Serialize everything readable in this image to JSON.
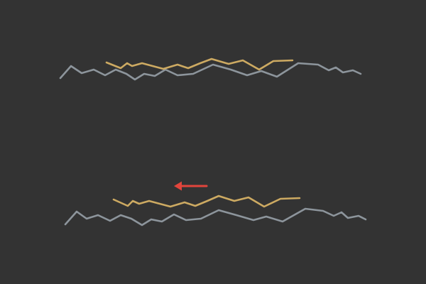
{
  "colors": {
    "background": "#333333",
    "reference": "#8d959c",
    "shifted": "#cdaa62",
    "arrow": "#e2453c"
  },
  "panels": [
    {
      "name": "top",
      "reference": [
        [
          85,
          110
        ],
        [
          100,
          93
        ],
        [
          115,
          103
        ],
        [
          132,
          98
        ],
        [
          148,
          106
        ],
        [
          163,
          98
        ],
        [
          178,
          104
        ],
        [
          190,
          112
        ],
        [
          203,
          104
        ],
        [
          218,
          107
        ],
        [
          233,
          98
        ],
        [
          250,
          106
        ],
        [
          272,
          104
        ],
        [
          300,
          91
        ],
        [
          325,
          98
        ],
        [
          348,
          106
        ],
        [
          368,
          100
        ],
        [
          390,
          108
        ],
        [
          420,
          89
        ],
        [
          448,
          91
        ],
        [
          463,
          99
        ],
        [
          473,
          95
        ],
        [
          483,
          102
        ],
        [
          497,
          99
        ],
        [
          508,
          104
        ]
      ],
      "shifted": [
        [
          150,
          88
        ],
        [
          170,
          96
        ],
        [
          179,
          89
        ],
        [
          186,
          93
        ],
        [
          200,
          89
        ],
        [
          215,
          93
        ],
        [
          230,
          97
        ],
        [
          250,
          91
        ],
        [
          265,
          96
        ],
        [
          282,
          89
        ],
        [
          298,
          83
        ],
        [
          322,
          90
        ],
        [
          342,
          85
        ],
        [
          365,
          98
        ],
        [
          385,
          86
        ],
        [
          412,
          85
        ]
      ]
    },
    {
      "name": "bottom",
      "reference": [
        [
          92,
          316
        ],
        [
          108,
          298
        ],
        [
          122,
          308
        ],
        [
          138,
          303
        ],
        [
          155,
          311
        ],
        [
          170,
          303
        ],
        [
          185,
          308
        ],
        [
          200,
          317
        ],
        [
          213,
          309
        ],
        [
          228,
          312
        ],
        [
          245,
          302
        ],
        [
          262,
          310
        ],
        [
          283,
          308
        ],
        [
          308,
          296
        ],
        [
          333,
          303
        ],
        [
          357,
          310
        ],
        [
          375,
          305
        ],
        [
          398,
          312
        ],
        [
          430,
          294
        ],
        [
          455,
          297
        ],
        [
          470,
          304
        ],
        [
          481,
          299
        ],
        [
          490,
          307
        ],
        [
          505,
          304
        ],
        [
          515,
          309
        ]
      ],
      "shifted": [
        [
          160,
          281
        ],
        [
          180,
          290
        ],
        [
          187,
          283
        ],
        [
          196,
          287
        ],
        [
          210,
          283
        ],
        [
          225,
          287
        ],
        [
          240,
          291
        ],
        [
          260,
          285
        ],
        [
          275,
          290
        ],
        [
          292,
          283
        ],
        [
          308,
          276
        ],
        [
          330,
          283
        ],
        [
          350,
          278
        ],
        [
          372,
          291
        ],
        [
          395,
          280
        ],
        [
          422,
          279
        ]
      ]
    }
  ],
  "arrow": {
    "direction": "left"
  }
}
